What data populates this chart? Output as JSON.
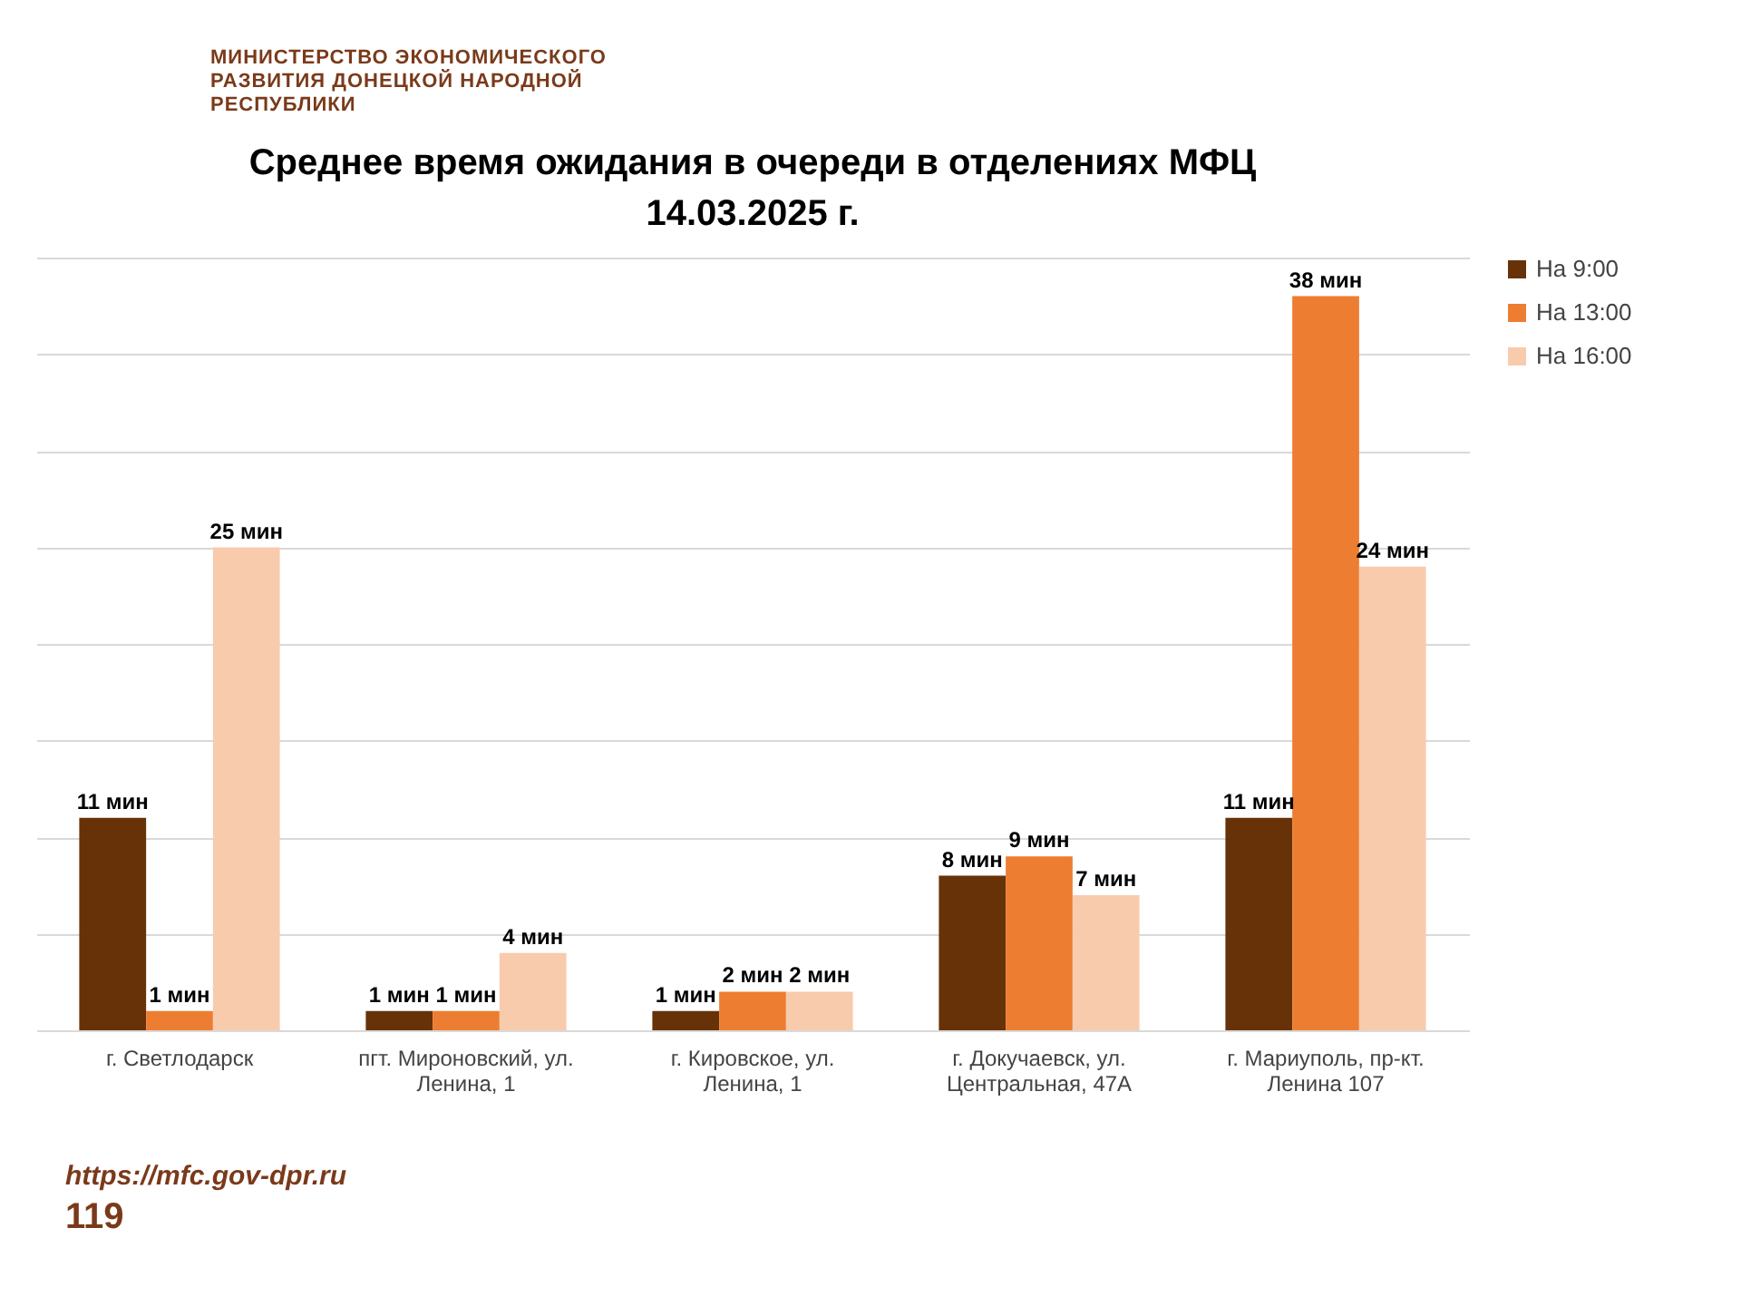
{
  "chart_data": {
    "type": "bar",
    "title": [
      "Среднее время ожидания в очереди в отделениях МФЦ",
      "14.03.2025 г."
    ],
    "categories": [
      "г. Светлодарск",
      "пгт. Мироновский, ул. Ленина, 1",
      "г. Кировское, ул. Ленина, 1",
      "г. Докучаевск, ул. Центральная, 47А",
      "г. Мариуполь, пр-кт. Ленина 107"
    ],
    "series": [
      {
        "name": "На 9:00",
        "color": "#673208",
        "values": [
          11,
          1,
          1,
          8,
          11
        ],
        "value_labels": [
          "11 мин",
          "1 мин",
          "1 мин",
          "8 мин",
          "11 мин"
        ]
      },
      {
        "name": "На 13:00",
        "color": "#ed7d31",
        "values": [
          1,
          1,
          2,
          9,
          38
        ],
        "value_labels": [
          "1 мин",
          "1 мин",
          "2 мин",
          "9 мин",
          "38 мин"
        ]
      },
      {
        "name": "На 16:00",
        "color": "#f8cbad",
        "values": [
          25,
          4,
          2,
          7,
          24
        ],
        "value_labels": [
          "25 мин",
          "4 мин",
          "2 мин",
          "7 мин",
          "24 мин"
        ]
      }
    ],
    "ylim": [
      0,
      40
    ],
    "yticks": [
      {
        "value": 0,
        "label": null
      },
      {
        "value": 5,
        "label": null
      },
      {
        "value": 10,
        "label": null
      },
      {
        "value": 15,
        "label": null
      },
      {
        "value": 20,
        "label": null
      },
      {
        "value": 25,
        "label": null
      },
      {
        "value": 30,
        "label": null
      },
      {
        "value": 35,
        "label": null
      },
      {
        "value": 40,
        "label": null
      }
    ],
    "grid": "y",
    "legend": "right",
    "tick_labels": "x",
    "annotations": [
      "МИНИСТЕРСТВО ЭКОНОМИЧЕСКОГО РАЗВИТИЯ ДОНЕЦКОЙ НАРОДНОЙ РЕСПУБЛИКИ",
      "https://mfc.gov-dpr.ru",
      "119"
    ]
  }
}
